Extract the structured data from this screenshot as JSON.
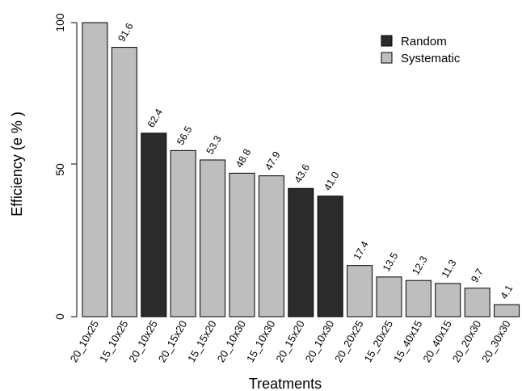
{
  "chart_data": {
    "type": "bar",
    "title": "",
    "xlabel": "Treatments",
    "ylabel": "Efficiency (e % )",
    "ylim": [
      0,
      100
    ],
    "yticks": [
      0,
      50,
      100
    ],
    "categories": [
      "20_10x25",
      "15_10x25",
      "20_10x25",
      "20_15x20",
      "15_15x20",
      "20_10x30",
      "15_10x30",
      "20_15x20",
      "20_10x30",
      "20_20x25",
      "15_20x25",
      "15_40x15",
      "20_40x15",
      "20_20x30",
      "20_30x30"
    ],
    "values": [
      100,
      91.6,
      62.4,
      56.5,
      53.3,
      48.8,
      47.9,
      43.6,
      41.0,
      17.4,
      13.5,
      12.3,
      11.3,
      9.7,
      4.1
    ],
    "value_labels": [
      "",
      "91.6",
      "62.4",
      "56.5",
      "53.3",
      "48.8",
      "47.9",
      "43.6",
      "41.0",
      "17.4",
      "13.5",
      "12.3",
      "11.3",
      "9.7",
      "4.1"
    ],
    "groups": [
      "Systematic",
      "Systematic",
      "Random",
      "Systematic",
      "Systematic",
      "Systematic",
      "Systematic",
      "Random",
      "Random",
      "Systematic",
      "Systematic",
      "Systematic",
      "Systematic",
      "Systematic",
      "Systematic"
    ],
    "legend": [
      {
        "name": "Random",
        "color": "#2b2b2b"
      },
      {
        "name": "Systematic",
        "color": "#bebebe"
      }
    ],
    "legend_position": "top-right",
    "grid": false
  }
}
